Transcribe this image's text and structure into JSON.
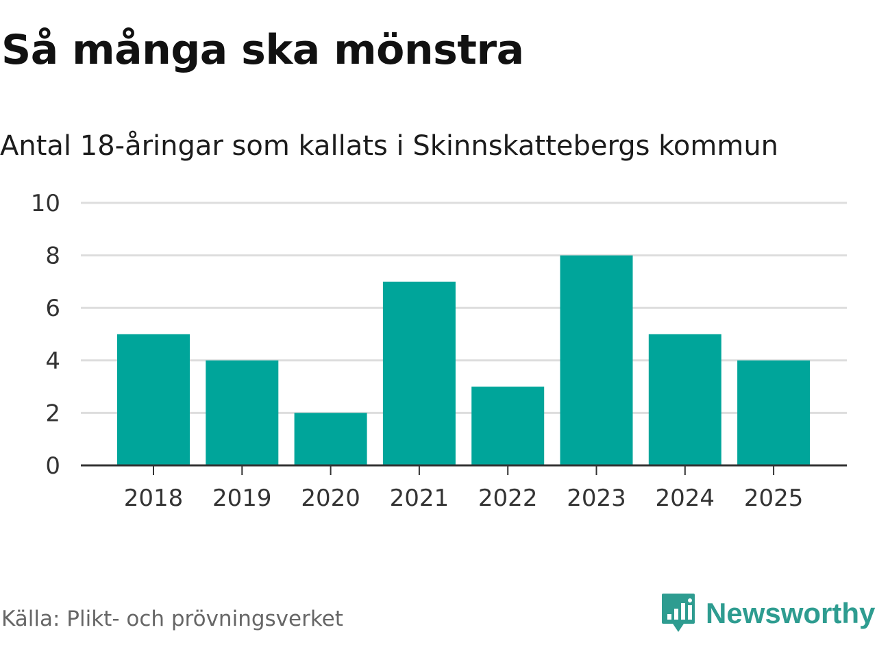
{
  "title": "Så många ska mönstra",
  "subtitle": "Antal 18-åringar som kallats i Skinnskattebergs kommun",
  "source": "Källa: Plikt- och prövningsverket",
  "brand": {
    "name": "Newsworthy",
    "icon": "newsworthy-logo-icon",
    "color": "#2e9c90"
  },
  "colors": {
    "bar": "#00a59a",
    "grid": "#dddddd",
    "axis": "#333333"
  },
  "chart_data": {
    "type": "bar",
    "title": "Så många ska mönstra",
    "subtitle": "Antal 18-åringar som kallats i Skinnskattebergs kommun",
    "categories": [
      "2018",
      "2019",
      "2020",
      "2021",
      "2022",
      "2023",
      "2024",
      "2025"
    ],
    "values": [
      5,
      4,
      2,
      7,
      3,
      8,
      5,
      4
    ],
    "xlabel": "",
    "ylabel": "",
    "ylim": [
      0,
      10
    ],
    "yticks": [
      0,
      2,
      4,
      6,
      8,
      10
    ],
    "grid": true,
    "legend": "none"
  }
}
